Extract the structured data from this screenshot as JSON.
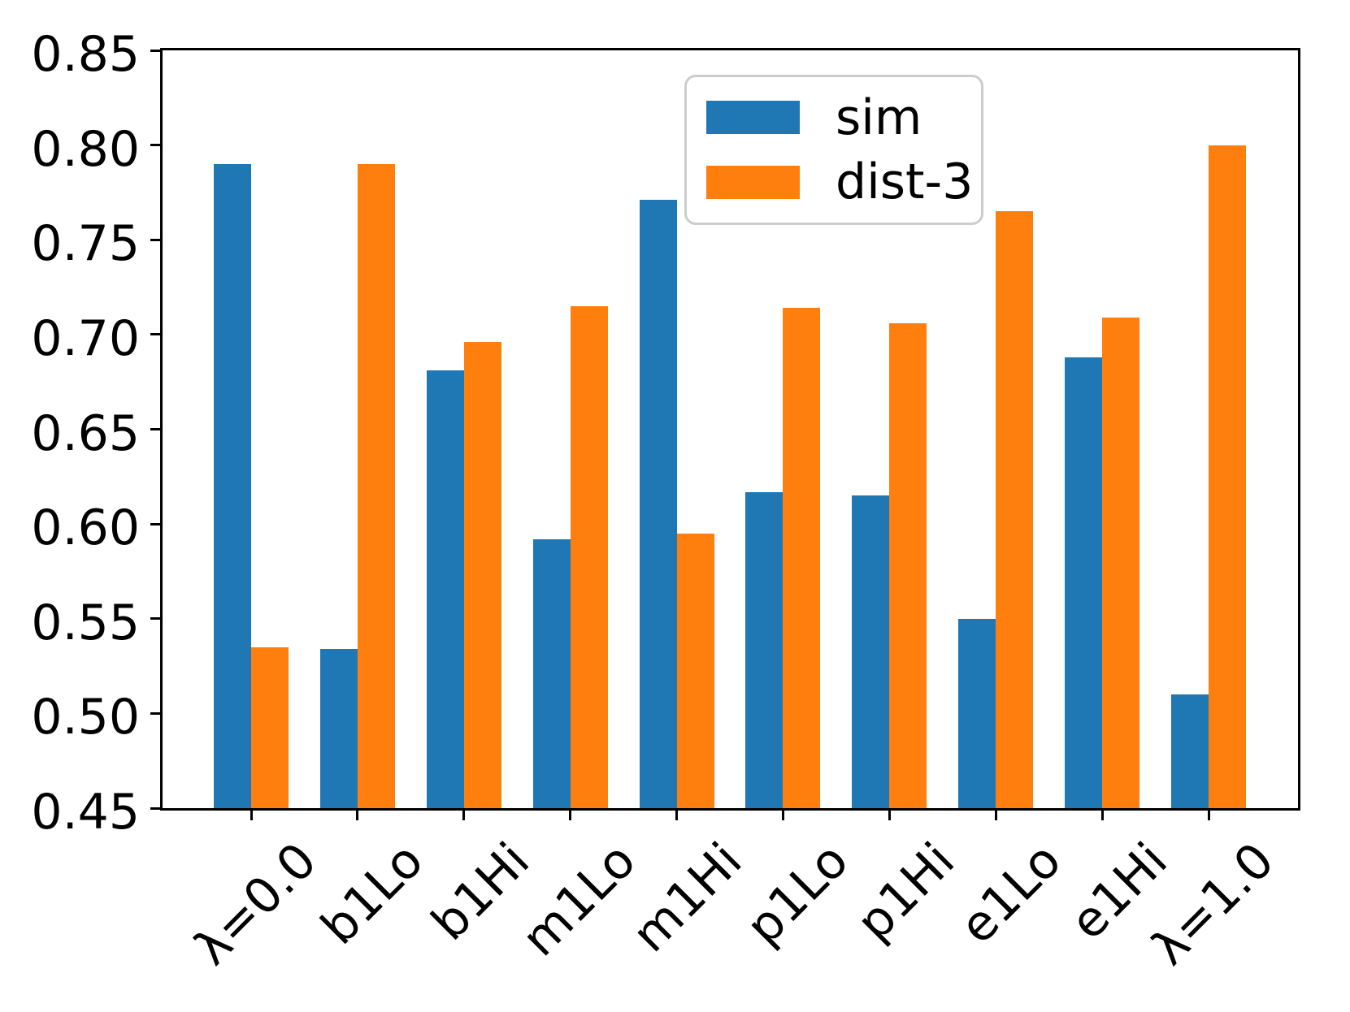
{
  "chart_data": {
    "type": "bar",
    "title": "",
    "xlabel": "",
    "ylabel": "",
    "categories": [
      "λ=0.0",
      "b1Lo",
      "b1Hi",
      "m1Lo",
      "m1Hi",
      "p1Lo",
      "p1Hi",
      "e1Lo",
      "e1Hi",
      "λ=1.0"
    ],
    "series": [
      {
        "name": "sim",
        "color": "#1f77b4",
        "values": [
          0.79,
          0.534,
          0.681,
          0.592,
          0.771,
          0.617,
          0.615,
          0.55,
          0.688,
          0.51
        ]
      },
      {
        "name": "dist-3",
        "color": "#ff7f0e",
        "values": [
          0.535,
          0.79,
          0.696,
          0.715,
          0.595,
          0.714,
          0.706,
          0.765,
          0.709,
          0.8
        ]
      }
    ],
    "ylim": [
      0.45,
      0.85
    ],
    "yticks": [
      0.45,
      0.5,
      0.55,
      0.6,
      0.65,
      0.7,
      0.75,
      0.8,
      0.85
    ],
    "ytick_decimals": 2,
    "xtick_rotation_deg": 45,
    "grid": false,
    "axis_color": "#000000",
    "legend": {
      "entries": [
        "sim",
        "dist-3"
      ],
      "position": "upper right"
    }
  }
}
